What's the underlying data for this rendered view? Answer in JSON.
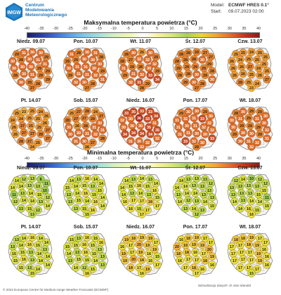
{
  "header": {
    "logo_initials": "IMGW",
    "org_line1": "Centrum",
    "org_line2": "Modelowania",
    "org_line3": "Meteorologicznego",
    "model_label": "Model:",
    "model_value": "ECMWF HRES 0.1°",
    "start_label": "Start:",
    "start_value": "09.07.2023 02:00"
  },
  "scale": {
    "ticks": [
      "-40",
      "-35",
      "-30",
      "-25",
      "-20",
      "-15",
      "-10",
      "-5",
      "0",
      "5",
      "10",
      "15",
      "20",
      "25",
      "30",
      "35",
      "40"
    ],
    "colors": [
      "#1b1f6b",
      "#2b3fa8",
      "#3f6fd8",
      "#5aa3e8",
      "#7fcbea",
      "#a8e0d9",
      "#d6f0c0",
      "#eef7b0",
      "#ffffff",
      "#f7f3a0",
      "#d7e77a",
      "#a7d255",
      "#e8d63a",
      "#f2a632",
      "#e46b2a",
      "#c7331f",
      "#8e1a18"
    ]
  },
  "max_section": {
    "title": "Maksymalna temperatura powietrza (°C)",
    "panels": [
      {
        "date": "Niedz. 09.07",
        "values": [
          "29",
          "31",
          "30",
          "30",
          "29",
          "30",
          "28",
          "30",
          "31",
          "31",
          "30",
          "30",
          "30",
          "29",
          "29",
          "28",
          "30",
          "31",
          "29",
          "29",
          "30",
          "29",
          "28",
          "27"
        ]
      },
      {
        "date": "Pon. 10.07",
        "values": [
          "31",
          "28",
          "30",
          "31",
          "28",
          "29",
          "29",
          "30",
          "30",
          "30",
          "30",
          "31",
          "31",
          "30",
          "29",
          "29",
          "31",
          "31",
          "32",
          "31",
          "32",
          "30",
          "28",
          "27"
        ]
      },
      {
        "date": "Wt. 11.07",
        "values": [
          "28",
          "30",
          "26",
          "30",
          "29",
          "28",
          "27",
          "32",
          "32",
          "32",
          "31",
          "29",
          "28",
          "30",
          "29",
          "29",
          "31",
          "32",
          "33",
          "34",
          "32",
          "33",
          "29",
          "28"
        ]
      },
      {
        "date": "Śr. 12.07",
        "values": [
          "28",
          "28",
          "29",
          "27",
          "27",
          "28",
          "28",
          "28",
          "30",
          "29",
          "29",
          "29",
          "29",
          "29",
          "28",
          "28",
          "28",
          "30",
          "29",
          "30",
          "29",
          "30",
          "28",
          "27"
        ]
      },
      {
        "date": "Czw. 13.07",
        "values": [
          "25",
          "25",
          "24",
          "25",
          "25",
          "26",
          "24",
          "25",
          "25",
          "25",
          "26",
          "26",
          "27",
          "24",
          "25",
          "26",
          "26",
          "25",
          "26",
          "27",
          "28",
          "25",
          "24",
          "23"
        ]
      },
      {
        "date": "Pt. 14.07",
        "values": [
          "25",
          "23",
          "25",
          "24",
          "26",
          "24",
          "24",
          "25",
          "25",
          "26",
          "26",
          "27",
          "25",
          "25",
          "27",
          "26",
          "27",
          "27",
          "28",
          "27",
          "28",
          "27",
          "25",
          "24"
        ]
      },
      {
        "date": "Sob. 15.07",
        "values": [
          "25",
          "27",
          "28",
          "24",
          "27",
          "28",
          "27",
          "27",
          "29",
          "30",
          "30",
          "26",
          "28",
          "31",
          "31",
          "30",
          "30",
          "31",
          "32",
          "28",
          "31",
          "30",
          "27",
          "26"
        ]
      },
      {
        "date": "Niedz. 16.07",
        "values": [
          "33",
          "35",
          "33",
          "33",
          "34",
          "32",
          "30",
          "36",
          "33",
          "31",
          "30",
          "30",
          "30",
          "35",
          "35",
          "34",
          "34",
          "34",
          "34",
          "32",
          "31",
          "30",
          "32",
          "32"
        ]
      },
      {
        "date": "Pon. 17.07",
        "values": [
          "29",
          "30",
          "30",
          "29",
          "30",
          "31",
          "32",
          "31",
          "33",
          "32",
          "31",
          "30",
          "31",
          "32",
          "32",
          "31",
          "31",
          "30",
          "30",
          "33",
          "33",
          "32",
          "30",
          "29"
        ]
      },
      {
        "date": "Wt. 18.07",
        "values": [
          "28",
          "30",
          "29",
          "29",
          "30",
          "30",
          "31",
          "29",
          "31",
          "30",
          "30",
          "29",
          "29",
          "29",
          "32",
          "29",
          "30",
          "30",
          "29",
          "31",
          "30",
          "31",
          "32",
          "32"
        ]
      }
    ]
  },
  "min_section": {
    "title": "Minimalna temperatura powietrza (°C)",
    "panels": [
      {
        "date": "Niedz. 09.07",
        "values": [
          "14",
          "12",
          "13",
          "8",
          "11",
          "14",
          "14",
          "13",
          "13",
          "10",
          "11",
          "13",
          "14",
          "15",
          "12",
          "12",
          "14",
          "14",
          "13",
          "14",
          "13",
          "15",
          "12",
          "13"
        ]
      },
      {
        "date": "Pon. 10.07",
        "values": [
          "14",
          "13",
          "16",
          "14",
          "14",
          "15",
          "14",
          "15",
          "13",
          "15",
          "13",
          "14",
          "16",
          "15",
          "14",
          "13",
          "15",
          "14",
          "16",
          "14",
          "13",
          "15",
          "16",
          "15"
        ]
      },
      {
        "date": "Wt. 11.07",
        "values": [
          "14",
          "13",
          "14",
          "13",
          "14",
          "14",
          "15",
          "16",
          "15",
          "16",
          "14",
          "13",
          "14",
          "13",
          "15",
          "16",
          "17",
          "17",
          "18",
          "17",
          "16",
          "15",
          "17",
          "17"
        ]
      },
      {
        "date": "Śr. 12.07",
        "values": [
          "14",
          "13",
          "13",
          "13",
          "12",
          "14",
          "14",
          "13",
          "13",
          "13",
          "13",
          "14",
          "14",
          "13",
          "13",
          "14",
          "12",
          "13",
          "14",
          "15",
          "13",
          "14",
          "13",
          "12"
        ]
      },
      {
        "date": "Czw. 13.07",
        "values": [
          "12",
          "14",
          "10",
          "12",
          "12",
          "13",
          "13",
          "13",
          "13",
          "15",
          "13",
          "13",
          "13",
          "15",
          "11",
          "14",
          "13",
          "14",
          "14",
          "15",
          "14",
          "16",
          "15",
          "16"
        ]
      },
      {
        "date": "Pt. 14.07",
        "values": [
          "13",
          "14",
          "16",
          "14",
          "14",
          "13",
          "14",
          "16",
          "15",
          "13",
          "15",
          "15",
          "13",
          "14",
          "14",
          "15",
          "16",
          "13",
          "14",
          "14",
          "15",
          "13",
          "14",
          "15"
        ]
      },
      {
        "date": "Sob. 15.07",
        "values": [
          "15",
          "13",
          "16",
          "15",
          "16",
          "15",
          "15",
          "16",
          "15",
          "13",
          "14",
          "13",
          "16",
          "15",
          "13",
          "13",
          "15",
          "15",
          "14",
          "13",
          "14",
          "12",
          "15",
          "16"
        ]
      },
      {
        "date": "Niedz. 16.07",
        "values": [
          "19",
          "18",
          "19",
          "19",
          "17",
          "16",
          "17",
          "20",
          "19",
          "19",
          "19",
          "17",
          "19",
          "16",
          "15",
          "19",
          "20",
          "18",
          "16",
          "17",
          "18",
          "17",
          "19",
          "16"
        ]
      },
      {
        "date": "Pon. 17.07",
        "values": [
          "16",
          "18",
          "19",
          "17",
          "17",
          "20",
          "19",
          "19",
          "19",
          "20",
          "18",
          "18",
          "16",
          "17",
          "19",
          "16",
          "17",
          "17",
          "18",
          "16",
          "17",
          "18",
          "16",
          "17"
        ]
      },
      {
        "date": "Wt. 18.07",
        "values": [
          "18",
          "18",
          "19",
          "17",
          "17",
          "17",
          "17",
          "18",
          "19",
          "16",
          "17",
          "17",
          "17",
          "19",
          "16",
          "17",
          "17",
          "17",
          "19",
          "16",
          "17",
          "17",
          "17",
          "15"
        ]
      }
    ]
  },
  "footer": {
    "copyright": "© 2022 European Centre for Medium-range Weather Forecasts (ECMWF)",
    "credit": "Wizualizacja danych: dr Alan Mandal"
  }
}
